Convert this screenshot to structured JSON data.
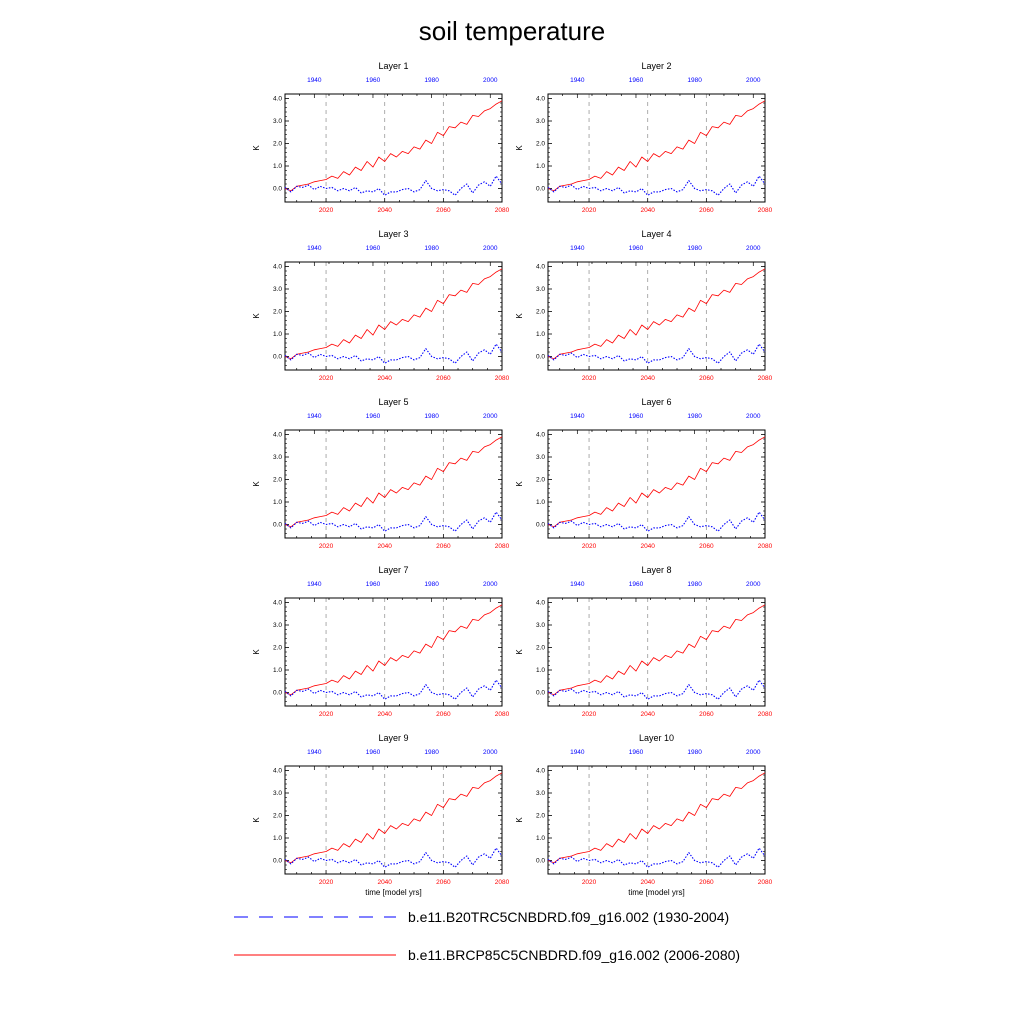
{
  "title": "soil temperature",
  "colors": {
    "future": "#ff0000",
    "historical": "#0000ff",
    "axis": "#000000",
    "ref_line": "#999999"
  },
  "legend": [
    {
      "label": "b.e11.B20TRC5CNBDRD.f09_g16.002 (1930-2004)",
      "color": "#0000ff",
      "style": "dashed"
    },
    {
      "label": "b.e11.BRCP85C5CNBDRD.f09_g16.002 (2006-2080)",
      "color": "#ff0000",
      "style": "solid"
    }
  ],
  "xlabel": "time [model yrs]",
  "ylabel": "K",
  "chart_data": {
    "type": "line",
    "title": "soil temperature",
    "panels": [
      "Layer 1",
      "Layer 2",
      "Layer 3",
      "Layer 4",
      "Layer 5",
      "Layer 6",
      "Layer 7",
      "Layer 8",
      "Layer 9",
      "Layer 10"
    ],
    "ylabel": "K",
    "ylim": [
      -0.6,
      4.2
    ],
    "yticks": [
      0.0,
      1.0,
      2.0,
      3.0,
      4.0
    ],
    "ytick_labels": [
      "0.0",
      "1.0",
      "2.0",
      "3.0",
      "4.0"
    ],
    "bottom_axis": {
      "label": "time [model yrs]",
      "range": [
        2006,
        2080
      ],
      "ticks": [
        2020,
        2040,
        2060,
        2080
      ],
      "tick_color": "#ff0000"
    },
    "top_axis": {
      "range": [
        1930,
        2004
      ],
      "ticks": [
        1940,
        1960,
        1980,
        2000
      ],
      "tick_color": "#0000ff"
    },
    "reference_lines_x": [
      2020,
      2040,
      2060
    ],
    "series": [
      {
        "name": "b.e11.BRCP85C5CNBDRD.f09_g16.002 (2006-2080)",
        "axis": "bottom",
        "style": "solid",
        "x": [
          2006,
          2008,
          2010,
          2012,
          2014,
          2016,
          2018,
          2020,
          2022,
          2024,
          2026,
          2028,
          2030,
          2032,
          2034,
          2036,
          2038,
          2040,
          2042,
          2044,
          2046,
          2048,
          2050,
          2052,
          2054,
          2056,
          2058,
          2060,
          2062,
          2064,
          2066,
          2068,
          2070,
          2072,
          2074,
          2076,
          2078,
          2080
        ],
        "y": [
          0.0,
          -0.1,
          0.1,
          0.15,
          0.2,
          0.3,
          0.35,
          0.4,
          0.55,
          0.45,
          0.75,
          0.6,
          0.95,
          0.8,
          1.2,
          0.95,
          1.4,
          1.2,
          1.55,
          1.4,
          1.65,
          1.55,
          1.85,
          1.75,
          2.15,
          2.0,
          2.5,
          2.35,
          2.75,
          2.7,
          2.95,
          2.85,
          3.25,
          3.2,
          3.45,
          3.55,
          3.75,
          3.9
        ]
      },
      {
        "name": "b.e11.B20TRC5CNBDRD.f09_g16.002 (1930-2004)",
        "axis": "top",
        "style": "dashed",
        "x": [
          1930,
          1932,
          1934,
          1936,
          1938,
          1940,
          1942,
          1944,
          1946,
          1948,
          1950,
          1952,
          1954,
          1956,
          1958,
          1960,
          1962,
          1964,
          1966,
          1968,
          1970,
          1972,
          1974,
          1976,
          1978,
          1980,
          1982,
          1984,
          1986,
          1988,
          1990,
          1992,
          1994,
          1996,
          1998,
          2000,
          2002,
          2004
        ],
        "y": [
          0.05,
          -0.15,
          0.1,
          0.05,
          0.15,
          -0.05,
          0.1,
          0.0,
          0.05,
          -0.1,
          0.0,
          -0.1,
          0.05,
          -0.2,
          -0.1,
          -0.15,
          0.0,
          -0.3,
          -0.15,
          -0.15,
          -0.05,
          0.0,
          -0.15,
          -0.05,
          0.35,
          0.0,
          -0.1,
          -0.05,
          -0.1,
          -0.3,
          0.0,
          0.2,
          -0.2,
          0.15,
          0.3,
          0.1,
          0.55,
          0.2
        ]
      }
    ]
  }
}
